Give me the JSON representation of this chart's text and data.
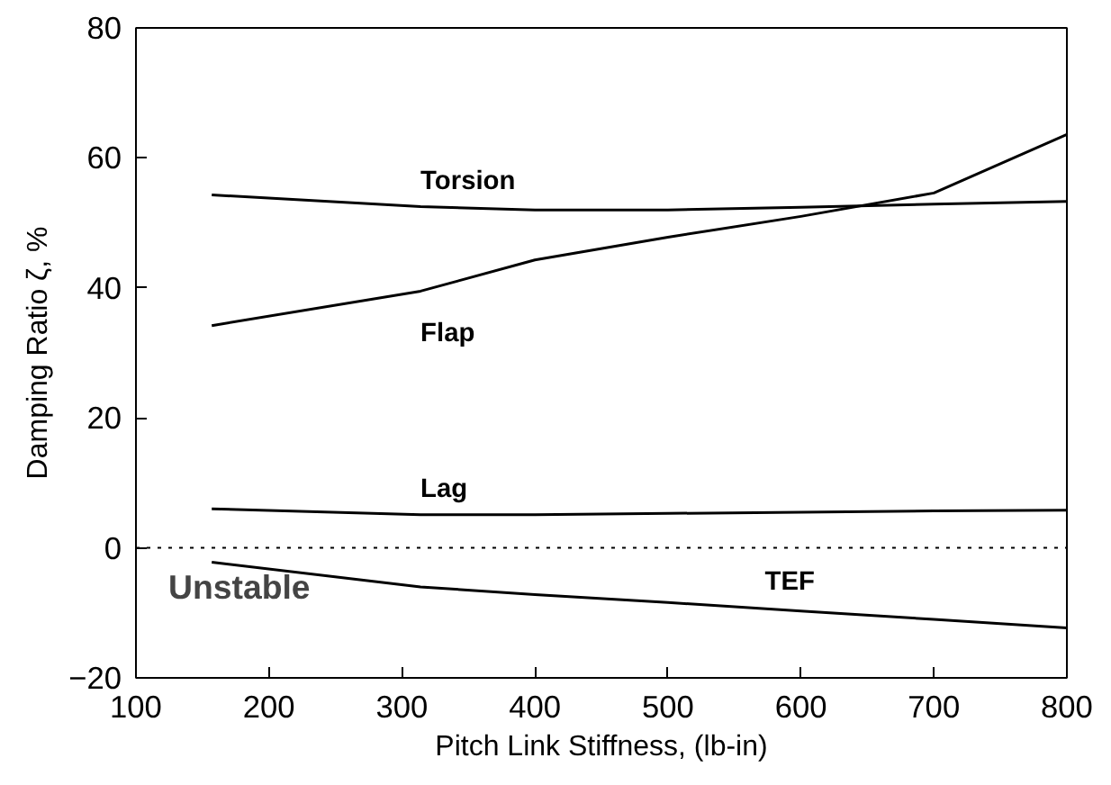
{
  "chart_data": {
    "type": "line",
    "xlabel": "Pitch Link Stiffness, (lb-in)",
    "ylabel": "Damping Ratio ζ, %",
    "x": [
      157,
      314,
      400,
      500,
      600,
      700,
      800
    ],
    "series": [
      {
        "name": "Torsion",
        "color": "#000000",
        "values": [
          54.3,
          52.5,
          52,
          52,
          52.4,
          52.9,
          53.3
        ]
      },
      {
        "name": "Flap",
        "color": "#000000",
        "values": [
          34.2,
          39.5,
          44.3,
          47.8,
          51,
          54.6,
          63.6
        ]
      },
      {
        "name": "Lag",
        "color": "#000000",
        "values": [
          6,
          5.1,
          5.1,
          5.3,
          5.5,
          5.7,
          5.8
        ]
      },
      {
        "name": "TEF",
        "color": "#000000",
        "values": [
          -2.2,
          -6,
          -7.2,
          -8.4,
          -9.7,
          -11,
          -12.3
        ]
      }
    ],
    "xlim": [
      100,
      800
    ],
    "ylim": [
      -20,
      80
    ],
    "xticks": [
      100,
      200,
      300,
      400,
      500,
      600,
      700,
      800
    ],
    "yticks": [
      -20,
      0,
      20,
      40,
      60,
      80
    ],
    "ref_lines": [
      {
        "axis": "y",
        "value": 0,
        "line_style": "dotted",
        "color": "#000000"
      }
    ],
    "annotations": [
      "Unstable"
    ],
    "grid": false,
    "marker": "none",
    "line_style": "solid"
  }
}
